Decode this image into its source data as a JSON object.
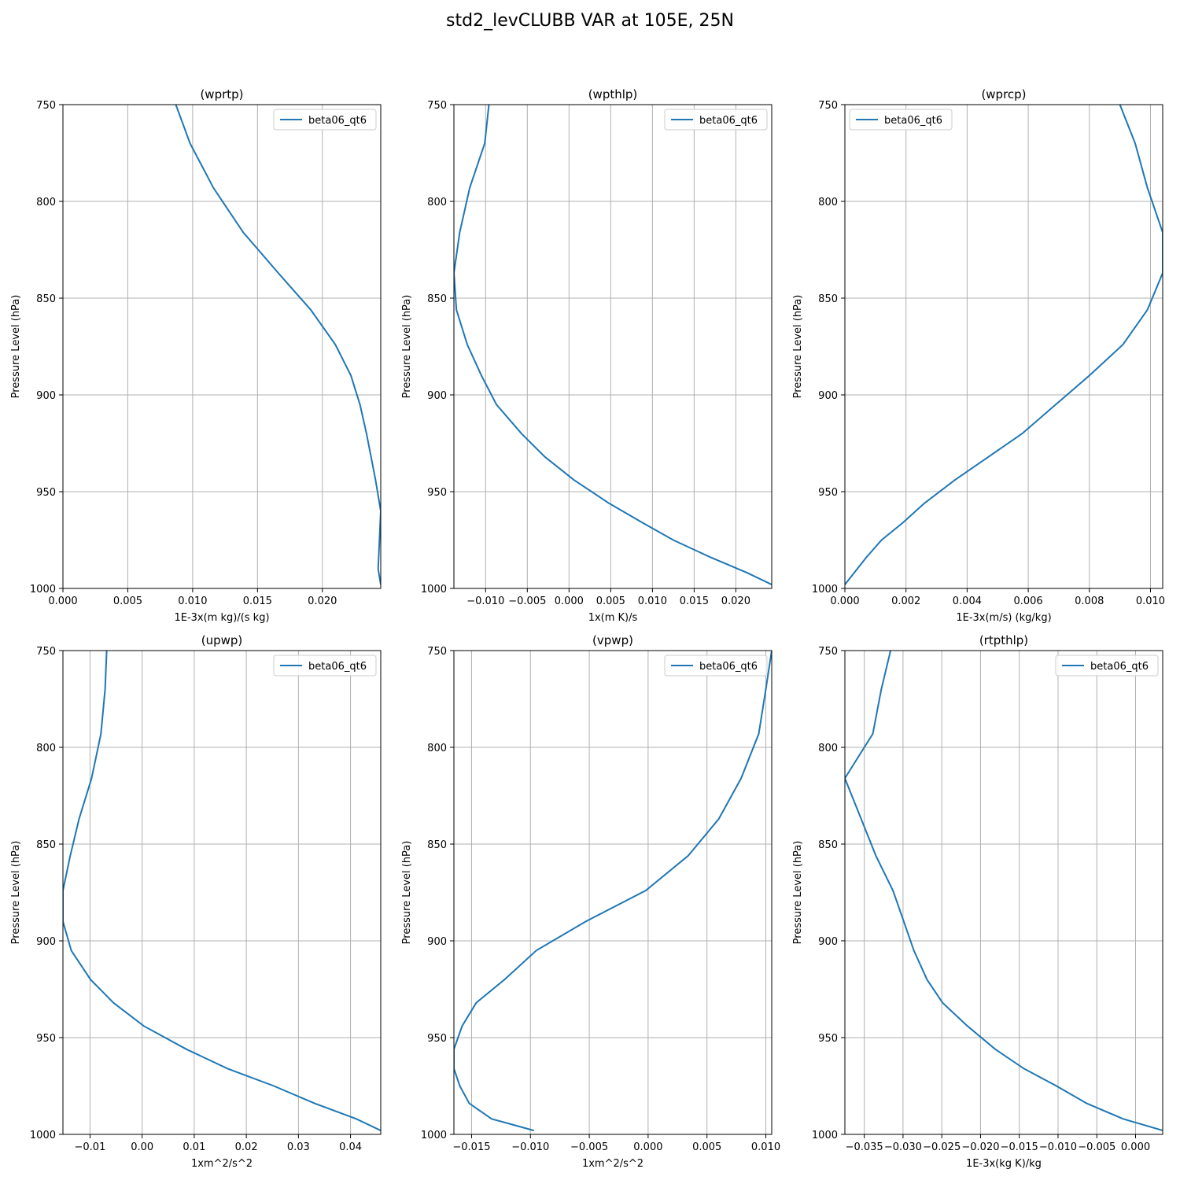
{
  "figure": {
    "title": "std2_levCLUBB VAR at 105E, 25N",
    "line_color": "#1f77b4",
    "grid_color": "#b0b0b0"
  },
  "chart_data": [
    {
      "type": "line",
      "title": "(wprtp)",
      "xlabel": "1E-3x(m kg)/(s kg)",
      "ylabel": "Pressure Level (hPa)",
      "xlim": [
        0.0,
        0.0245
      ],
      "ylim": [
        1000,
        750
      ],
      "y_inverted": true,
      "xticks": [
        0.0,
        0.005,
        0.01,
        0.015,
        0.02
      ],
      "xtick_labels": [
        "0.000",
        "0.005",
        "0.010",
        "0.015",
        "0.020"
      ],
      "yticks": [
        750,
        800,
        850,
        900,
        950,
        1000
      ],
      "grid": true,
      "legend_position": "top-right",
      "series": [
        {
          "name": "beta06_qt6",
          "x": [
            0.0087,
            0.0098,
            0.0116,
            0.0139,
            0.0166,
            0.0191,
            0.021,
            0.0222,
            0.0229,
            0.0234,
            0.0241,
            0.0245,
            0.0243,
            0.0245
          ],
          "y": [
            750,
            770,
            793,
            816,
            837,
            856,
            874,
            890,
            905,
            920,
            944,
            960,
            990,
            998
          ]
        }
      ]
    },
    {
      "type": "line",
      "title": "(wpthlp)",
      "xlabel": "1x(m K)/s",
      "ylabel": "Pressure Level (hPa)",
      "xlim": [
        -0.0138,
        0.0243
      ],
      "ylim": [
        1000,
        750
      ],
      "y_inverted": true,
      "xticks": [
        -0.01,
        -0.005,
        0.0,
        0.005,
        0.01,
        0.015,
        0.02
      ],
      "xtick_labels": [
        "−0.010",
        "−0.005",
        "0.000",
        "0.005",
        "0.010",
        "0.015",
        "0.020"
      ],
      "yticks": [
        750,
        800,
        850,
        900,
        950,
        1000
      ],
      "grid": true,
      "legend_position": "top-right",
      "series": [
        {
          "name": "beta06_qt6",
          "x": [
            -0.0096,
            -0.0101,
            -0.0119,
            -0.0131,
            -0.0138,
            -0.0135,
            -0.0122,
            -0.0105,
            -0.0087,
            -0.0057,
            -0.0029,
            0.0006,
            0.0048,
            0.0088,
            0.0125,
            0.017,
            0.0214,
            0.0243
          ],
          "y": [
            750,
            770,
            793,
            816,
            837,
            856,
            874,
            890,
            905,
            920,
            932,
            944,
            956,
            966,
            975,
            984,
            992,
            998
          ]
        }
      ]
    },
    {
      "type": "line",
      "title": "(wprcp)",
      "xlabel": "1E-3x(m/s) (kg/kg)",
      "ylabel": "Pressure Level (hPa)",
      "xlim": [
        0.0,
        0.0104
      ],
      "ylim": [
        1000,
        750
      ],
      "y_inverted": true,
      "xticks": [
        0.0,
        0.002,
        0.004,
        0.006,
        0.008,
        0.01
      ],
      "xtick_labels": [
        "0.000",
        "0.002",
        "0.004",
        "0.006",
        "0.008",
        "0.010"
      ],
      "yticks": [
        750,
        800,
        850,
        900,
        950,
        1000
      ],
      "grid": true,
      "legend_position": "top-left",
      "series": [
        {
          "name": "beta06_qt6",
          "x": [
            0.009,
            0.0095,
            0.0099,
            0.0104,
            0.0104,
            0.0099,
            0.0091,
            0.008,
            0.0069,
            0.0058,
            0.0047,
            0.0036,
            0.0026,
            0.0019,
            0.0012,
            0.0007,
            0.0003,
            0.0
          ],
          "y": [
            750,
            770,
            793,
            816,
            837,
            856,
            874,
            890,
            905,
            920,
            932,
            944,
            956,
            966,
            975,
            984,
            992,
            998
          ]
        }
      ]
    },
    {
      "type": "line",
      "title": "(upwp)",
      "xlabel": "1xm^2/s^2",
      "ylabel": "Pressure Level (hPa)",
      "xlim": [
        -0.0152,
        0.0458
      ],
      "ylim": [
        1000,
        750
      ],
      "y_inverted": true,
      "xticks": [
        -0.01,
        0.0,
        0.01,
        0.02,
        0.03,
        0.04
      ],
      "xtick_labels": [
        "−0.01",
        "0.00",
        "0.01",
        "0.02",
        "0.03",
        "0.04"
      ],
      "yticks": [
        750,
        800,
        850,
        900,
        950,
        1000
      ],
      "grid": true,
      "legend_position": "top-right",
      "series": [
        {
          "name": "beta06_qt6",
          "x": [
            -0.0068,
            -0.0071,
            -0.0079,
            -0.0097,
            -0.0121,
            -0.0138,
            -0.0152,
            -0.0152,
            -0.0136,
            -0.0099,
            -0.0055,
            0.0003,
            0.0085,
            0.0164,
            0.0253,
            0.0331,
            0.0411,
            0.0458
          ],
          "y": [
            750,
            770,
            793,
            816,
            837,
            856,
            874,
            890,
            905,
            920,
            932,
            944,
            956,
            966,
            975,
            984,
            992,
            998
          ]
        }
      ]
    },
    {
      "type": "line",
      "title": "(vpwp)",
      "xlabel": "1xm^2/s^2",
      "ylabel": "Pressure Level (hPa)",
      "xlim": [
        -0.0165,
        0.0105
      ],
      "ylim": [
        1000,
        750
      ],
      "y_inverted": true,
      "xticks": [
        -0.015,
        -0.01,
        -0.005,
        0.0,
        0.005,
        0.01
      ],
      "xtick_labels": [
        "−0.015",
        "−0.010",
        "−0.005",
        "0.000",
        "0.005",
        "0.010"
      ],
      "yticks": [
        750,
        800,
        850,
        900,
        950,
        1000
      ],
      "grid": true,
      "legend_position": "top-right",
      "series": [
        {
          "name": "beta06_qt6",
          "x": [
            0.0105,
            0.01,
            0.0094,
            0.0079,
            0.006,
            0.0034,
            -0.0002,
            -0.0053,
            -0.0095,
            -0.0122,
            -0.0146,
            -0.0158,
            -0.0165,
            -0.0165,
            -0.016,
            -0.0152,
            -0.0133,
            -0.0097
          ],
          "y": [
            750,
            770,
            793,
            816,
            837,
            856,
            874,
            890,
            905,
            920,
            932,
            944,
            956,
            966,
            975,
            984,
            992,
            998
          ]
        }
      ]
    },
    {
      "type": "line",
      "title": "(rtpthlp)",
      "xlabel": "1E-3x(kg K)/kg",
      "ylabel": "Pressure Level (hPa)",
      "xlim": [
        -0.0375,
        0.0035
      ],
      "ylim": [
        1000,
        750
      ],
      "y_inverted": true,
      "xticks": [
        -0.035,
        -0.03,
        -0.025,
        -0.02,
        -0.015,
        -0.01,
        -0.005,
        0.0
      ],
      "xtick_labels": [
        "−0.035",
        "−0.030",
        "−0.025",
        "−0.020",
        "−0.015",
        "−0.010",
        "−0.005",
        "0.000"
      ],
      "yticks": [
        750,
        800,
        850,
        900,
        950,
        1000
      ],
      "grid": true,
      "legend_position": "top-right",
      "series": [
        {
          "name": "beta06_qt6",
          "x": [
            -0.0316,
            -0.0328,
            -0.0339,
            -0.0375,
            -0.0354,
            -0.0335,
            -0.0313,
            -0.0299,
            -0.0286,
            -0.0269,
            -0.0249,
            -0.0217,
            -0.0181,
            -0.0144,
            -0.0102,
            -0.0063,
            -0.0016,
            0.0035
          ],
          "y": [
            750,
            770,
            793,
            816,
            837,
            856,
            874,
            890,
            905,
            920,
            932,
            944,
            956,
            966,
            975,
            984,
            992,
            998
          ]
        }
      ]
    }
  ]
}
